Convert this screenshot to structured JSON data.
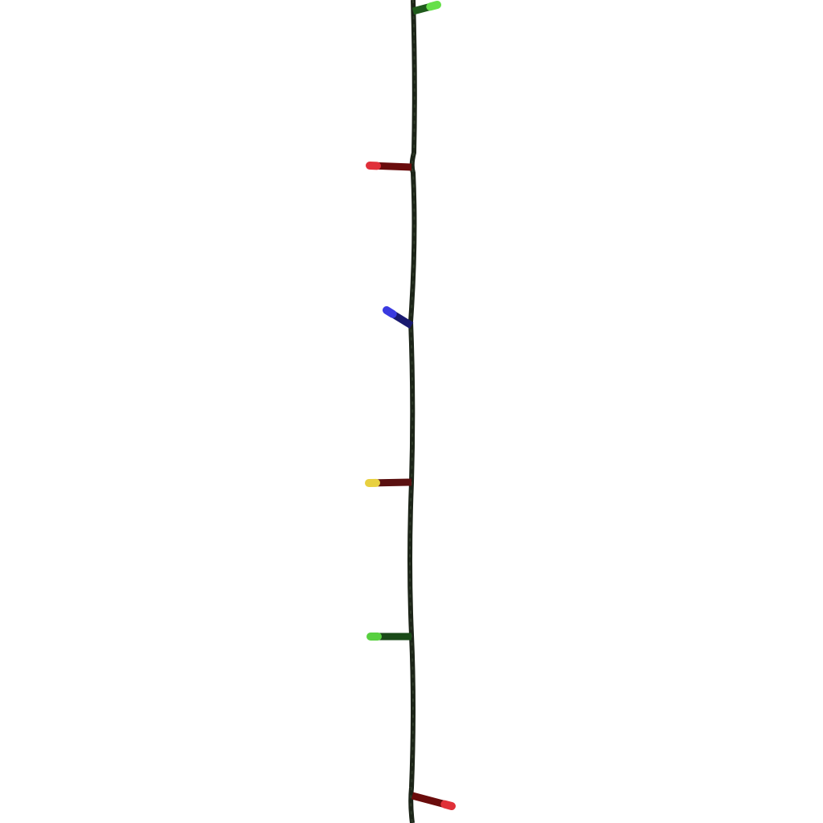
{
  "image": {
    "subject": "led-string-lights",
    "background_color": "#ffffff",
    "cable_color": "#1c2418",
    "bulbs": [
      {
        "color": "green",
        "tip": "#66e04a",
        "body": "#1f5a1c"
      },
      {
        "color": "red",
        "tip": "#e0303a",
        "body": "#6a0c0c"
      },
      {
        "color": "blue",
        "tip": "#3a3ae0",
        "body": "#1a1a70"
      },
      {
        "color": "yellow",
        "tip": "#e8d040",
        "body": "#5a1010"
      },
      {
        "color": "green",
        "tip": "#58d040",
        "body": "#1a4a18"
      },
      {
        "color": "red",
        "tip": "#e03038",
        "body": "#6a0c0c"
      }
    ]
  }
}
